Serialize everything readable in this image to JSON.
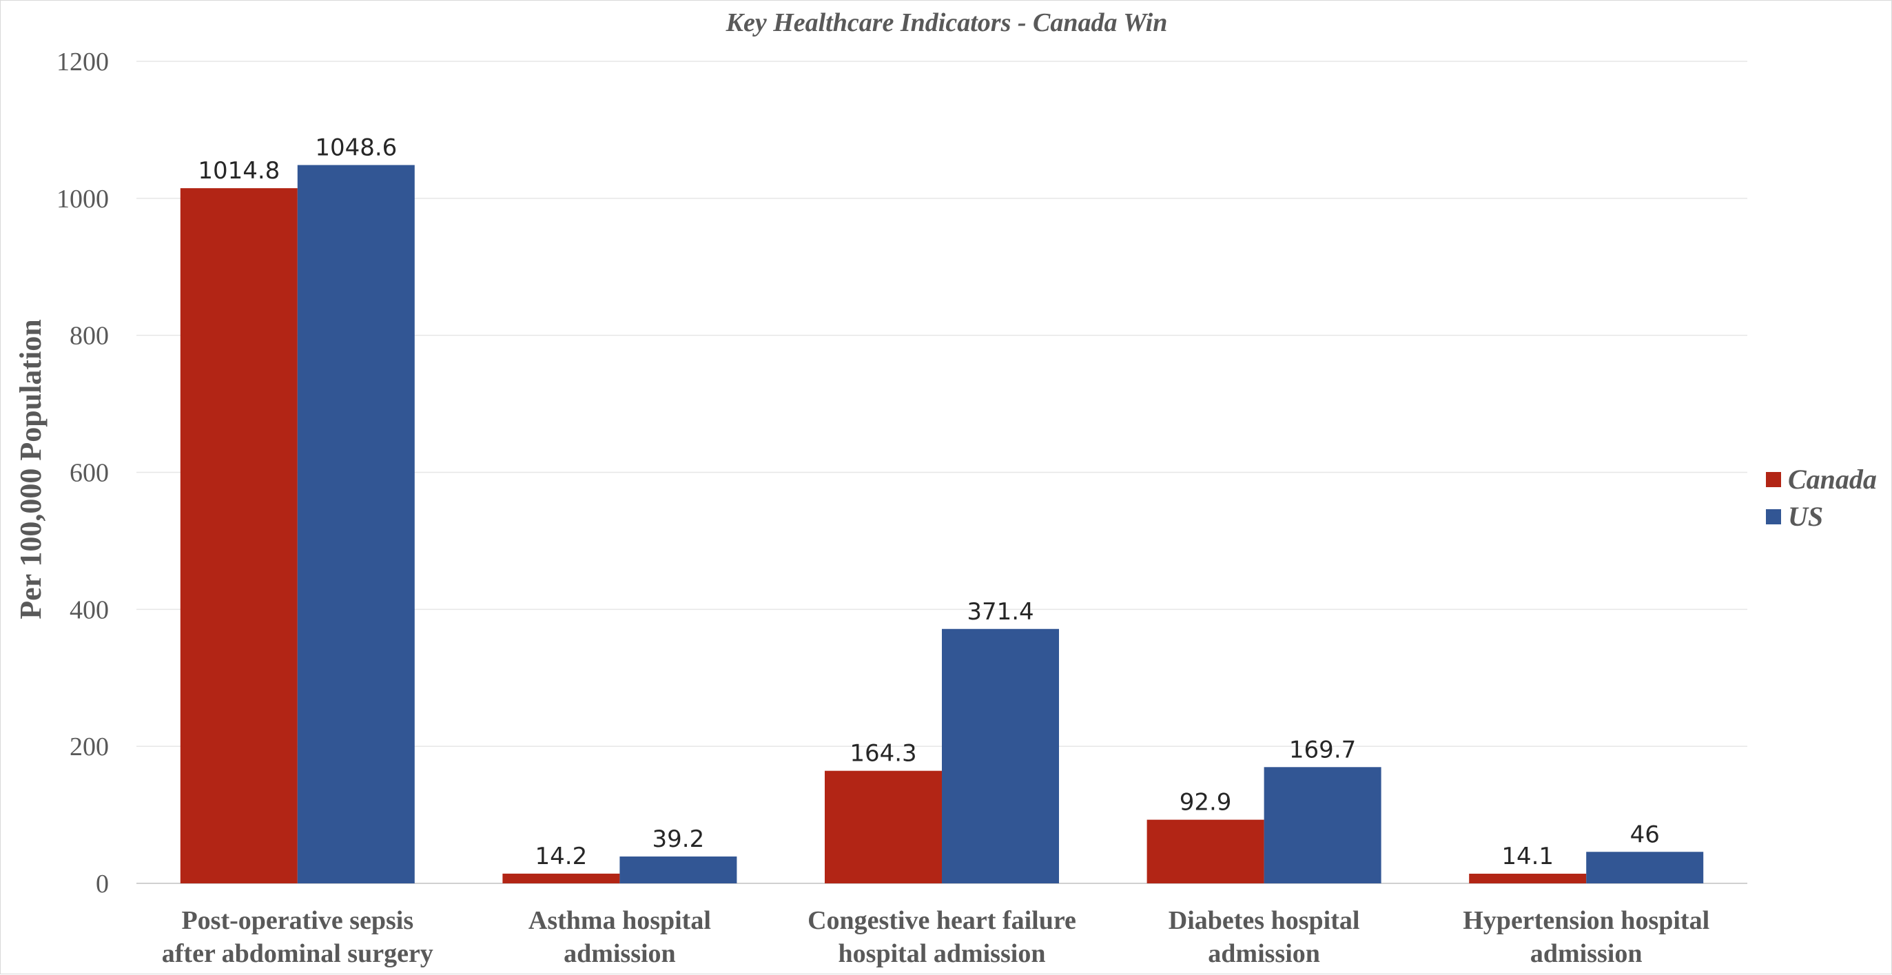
{
  "chart_data": {
    "type": "bar",
    "title": "Key Healthcare Indicators - Canada Win",
    "xlabel": "",
    "ylabel": "Per 100,000 Population",
    "ylim": [
      0,
      1200
    ],
    "yticks": [
      "0",
      "200",
      "400",
      "600",
      "800",
      "1000",
      "1200"
    ],
    "grid": true,
    "legend_position": "right",
    "categories": [
      [
        "Post-operative sepsis",
        "after abdominal surgery"
      ],
      [
        "Asthma hospital",
        "admission"
      ],
      [
        "Congestive heart failure",
        "hospital admission"
      ],
      [
        "Diabetes hospital",
        "admission"
      ],
      [
        "Hypertension hospital",
        "admission"
      ]
    ],
    "series": [
      {
        "name": "Canada",
        "color": "#B22515",
        "values": [
          1014.8,
          14.2,
          164.3,
          92.9,
          14.1
        ],
        "labels": [
          "1014.8",
          "14.2",
          "164.3",
          "92.9",
          "14.1"
        ]
      },
      {
        "name": "US",
        "color": "#325694",
        "values": [
          1048.6,
          39.2,
          371.4,
          169.7,
          46
        ],
        "labels": [
          "1048.6",
          "39.2",
          "371.4",
          "169.7",
          "46"
        ]
      }
    ]
  }
}
